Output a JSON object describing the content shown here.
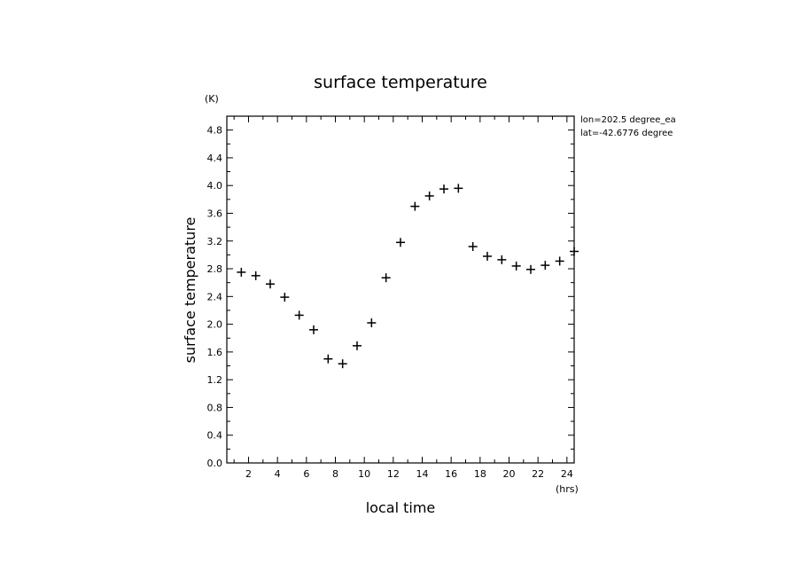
{
  "chart_data": {
    "type": "scatter",
    "title": "surface temperature",
    "xlabel": "local time",
    "ylabel": "surface temperature",
    "x_unit": "(hrs)",
    "y_unit": "(K)",
    "xlim": [
      0.5,
      24.5
    ],
    "ylim": [
      0.0,
      5.0
    ],
    "x_ticks": [
      2,
      4,
      6,
      8,
      10,
      12,
      14,
      16,
      18,
      20,
      22,
      24
    ],
    "y_ticks": [
      0.0,
      0.4,
      0.8,
      1.2,
      1.6,
      2.0,
      2.4,
      2.8,
      3.2,
      3.6,
      4.0,
      4.4,
      4.8
    ],
    "y_tick_labels": [
      "0.0",
      "0.4",
      "0.8",
      "1.2",
      "1.6",
      "2.0",
      "2.4",
      "2.8",
      "3.2",
      "3.6",
      "4.0",
      "4.4",
      "4.8"
    ],
    "marker": "plus",
    "grid": false,
    "x": [
      1.5,
      2.5,
      3.5,
      4.5,
      5.5,
      6.5,
      7.5,
      8.5,
      9.5,
      10.5,
      11.5,
      12.5,
      13.5,
      14.5,
      15.5,
      16.5,
      17.5,
      18.5,
      19.5,
      20.5,
      21.5,
      22.5,
      23.5,
      24.5
    ],
    "y": [
      2.75,
      2.7,
      2.58,
      2.39,
      2.13,
      1.92,
      1.5,
      1.43,
      1.69,
      2.02,
      2.67,
      3.18,
      3.7,
      3.85,
      3.95,
      3.96,
      3.12,
      2.98,
      2.93,
      2.84,
      2.79,
      2.85,
      2.91,
      3.05
    ],
    "annotations": [
      "lon=202.5 degree_ea",
      "lat=-42.6776 degree"
    ]
  }
}
